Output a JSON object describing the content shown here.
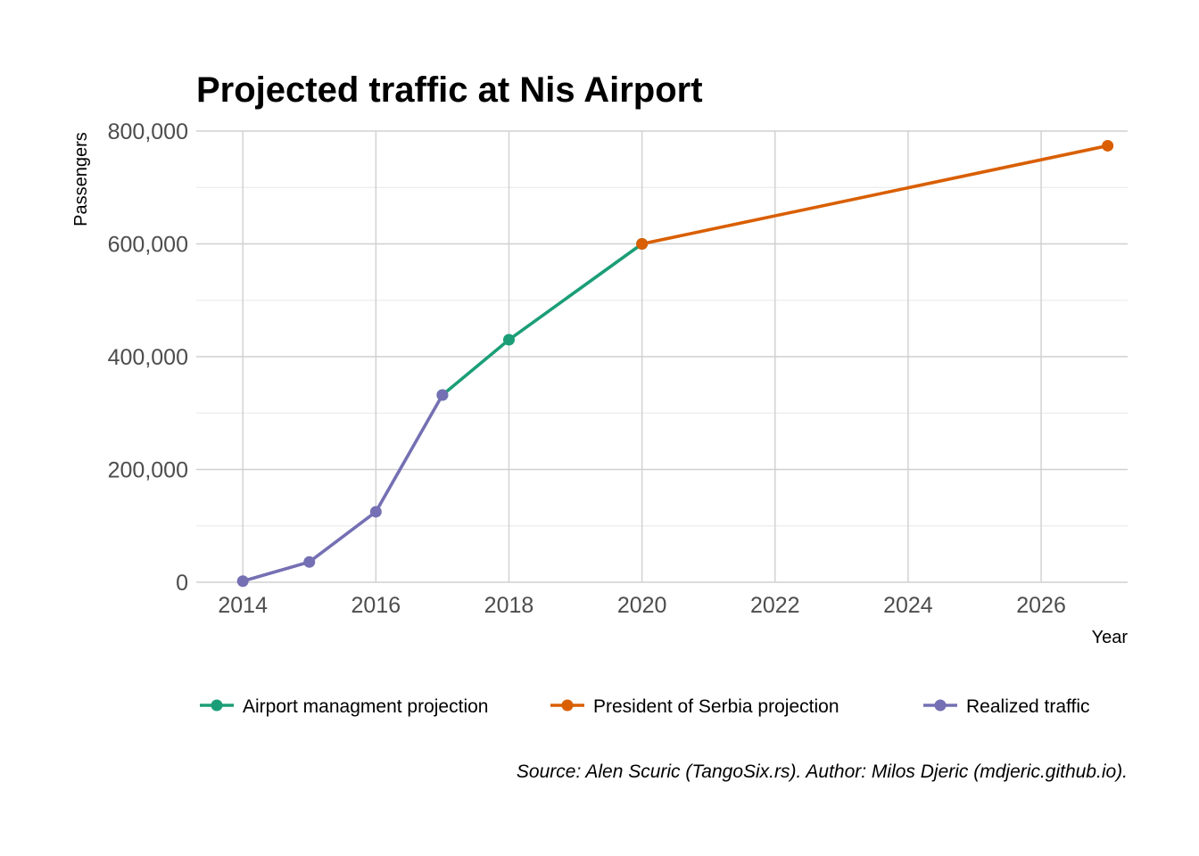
{
  "chart_data": {
    "type": "line",
    "title": "Projected traffic at Nis Airport",
    "xlabel": "Year",
    "ylabel": "Passengers",
    "xlim": [
      2013.3,
      2027.3
    ],
    "ylim": [
      0,
      800000
    ],
    "x_ticks": [
      2014,
      2016,
      2018,
      2020,
      2022,
      2024,
      2026
    ],
    "x_tick_labels": [
      "2014",
      "2016",
      "2018",
      "2020",
      "2022",
      "2024",
      "2026"
    ],
    "y_ticks": [
      0,
      200000,
      400000,
      600000,
      800000
    ],
    "y_tick_labels": [
      "0",
      "200,000",
      "400,000",
      "600,000",
      "800,000"
    ],
    "y_minor_ticks": [
      100000,
      300000,
      500000,
      700000
    ],
    "x_minor_ticks": [
      2015,
      2017,
      2019,
      2021,
      2023,
      2025,
      2027
    ],
    "grid": true,
    "legend_position": "bottom",
    "series": [
      {
        "name": "Airport managment projection",
        "color": "#1b9e77",
        "x": [
          2017,
          2018,
          2020
        ],
        "y": [
          332000,
          430000,
          600000
        ]
      },
      {
        "name": "President of Serbia projection",
        "color": "#d95f02",
        "x": [
          2020,
          2027
        ],
        "y": [
          600000,
          774000
        ]
      },
      {
        "name": "Realized traffic",
        "color": "#7570b3",
        "x": [
          2014,
          2015,
          2016,
          2017
        ],
        "y": [
          2000,
          36000,
          125000,
          332000
        ]
      }
    ],
    "caption": "Source: Alen Scuric (TangoSix.rs). Author: Milos Djeric (mdjeric.github.io)."
  }
}
